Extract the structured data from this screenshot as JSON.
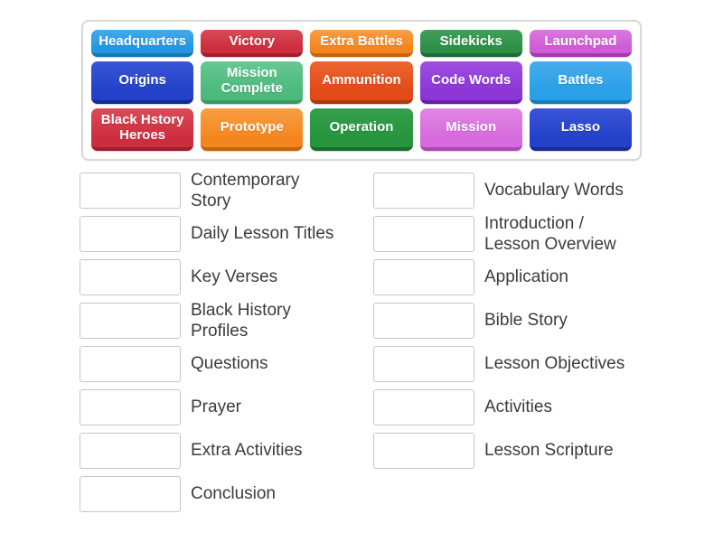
{
  "bank": {
    "tiles": [
      {
        "label": "Headquarters",
        "colors": {
          "top": "#45aae8",
          "base": "#2497e2",
          "edge": "#1677b6"
        }
      },
      {
        "label": "Victory",
        "colors": {
          "top": "#da4a58",
          "base": "#cd2e3f",
          "edge": "#9e1f2e"
        }
      },
      {
        "label": "Extra Battles",
        "colors": {
          "top": "#f89f45",
          "base": "#f5861f",
          "edge": "#c4660c"
        }
      },
      {
        "label": "Sidekicks",
        "colors": {
          "top": "#40a058",
          "base": "#2e8f48",
          "edge": "#1f6b36"
        }
      },
      {
        "label": "Launchpad",
        "colors": {
          "top": "#da78de",
          "base": "#cf5cd6",
          "edge": "#a23cae"
        }
      },
      {
        "label": "Origins",
        "colors": {
          "top": "#3a55d6",
          "base": "#2441c9",
          "edge": "#152b96"
        }
      },
      {
        "label": "Mission\nComplete",
        "colors": {
          "top": "#66c893",
          "base": "#4cba7d",
          "edge": "#369c64"
        }
      },
      {
        "label": "Ammunition",
        "colors": {
          "top": "#ec6630",
          "base": "#e24a18",
          "edge": "#b0380e"
        }
      },
      {
        "label": "Code Words",
        "colors": {
          "top": "#9d50e0",
          "base": "#8c36d8",
          "edge": "#6a21a8"
        }
      },
      {
        "label": "Battles",
        "colors": {
          "top": "#47acec",
          "base": "#29a0e8",
          "edge": "#187cba"
        }
      },
      {
        "label": "Black Hstory\nHeroes",
        "colors": {
          "top": "#da4a58",
          "base": "#cd2e3f",
          "edge": "#9e1f2e"
        }
      },
      {
        "label": "Prototype",
        "colors": {
          "top": "#f89f45",
          "base": "#f5861f",
          "edge": "#c4660c"
        }
      },
      {
        "label": "Operation",
        "colors": {
          "top": "#35a04c",
          "base": "#27943e",
          "edge": "#196e2d"
        }
      },
      {
        "label": "Mission",
        "colors": {
          "top": "#e186e4",
          "base": "#d76adc",
          "edge": "#ad47b8"
        }
      },
      {
        "label": "Lasso",
        "colors": {
          "top": "#3a55d6",
          "base": "#2441c9",
          "edge": "#152b96"
        }
      }
    ]
  },
  "match": {
    "left": [
      {
        "label": "Contemporary\nStory"
      },
      {
        "label": "Daily Lesson Titles"
      },
      {
        "label": "Key Verses"
      },
      {
        "label": "Black History\nProfiles"
      },
      {
        "label": "Questions"
      },
      {
        "label": "Prayer"
      },
      {
        "label": "Extra Activities"
      },
      {
        "label": "Conclusion"
      }
    ],
    "right": [
      {
        "label": "Vocabulary Words"
      },
      {
        "label": "Introduction /\nLesson Overview"
      },
      {
        "label": "Application"
      },
      {
        "label": "Bible Story"
      },
      {
        "label": "Lesson Objectives"
      },
      {
        "label": "Activities"
      },
      {
        "label": "Lesson Scripture"
      }
    ]
  }
}
